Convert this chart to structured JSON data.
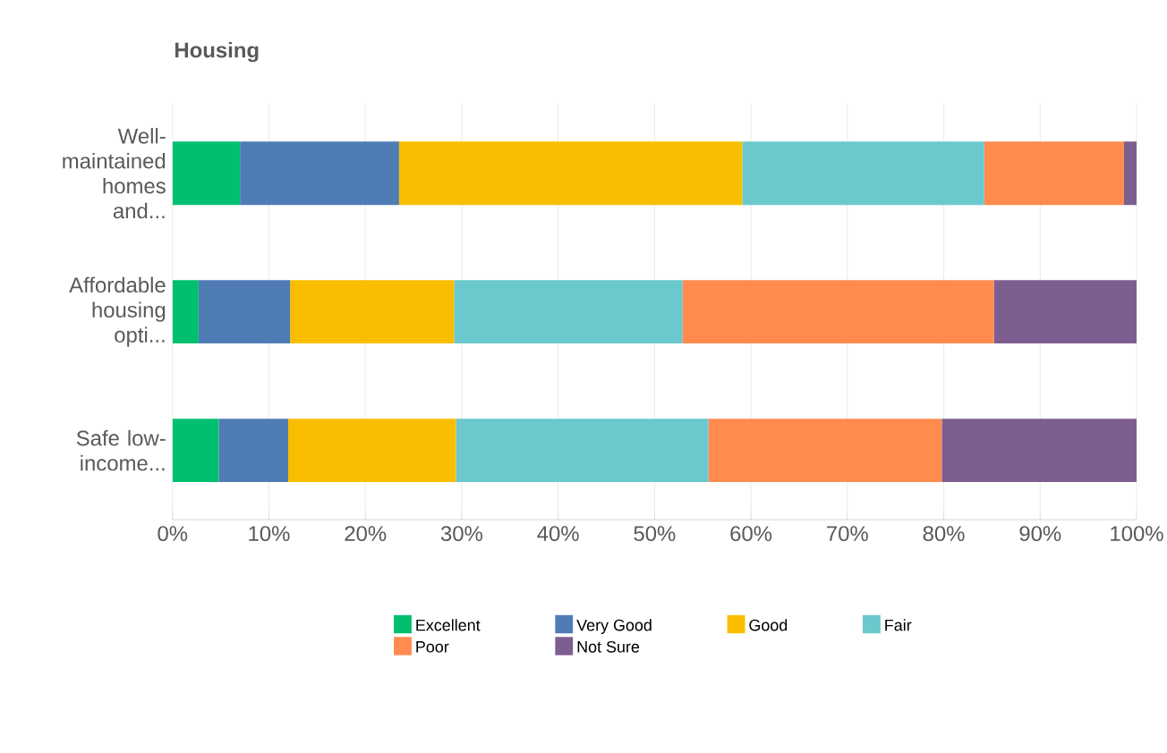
{
  "chart_data": {
    "type": "bar",
    "orientation": "horizontal",
    "stacked": true,
    "title": "Housing",
    "categories": [
      "Well-maintained homes and...",
      "Affordable housing opti...",
      "Safe low-income..."
    ],
    "series": [
      {
        "name": "Excellent",
        "color": "#00bf6f",
        "values": [
          7.0,
          2.7,
          4.8
        ]
      },
      {
        "name": "Very Good",
        "color": "#507cb6",
        "values": [
          16.5,
          9.5,
          7.2
        ]
      },
      {
        "name": "Good",
        "color": "#f9be00",
        "values": [
          35.6,
          17.0,
          17.4
        ]
      },
      {
        "name": "Fair",
        "color": "#6bc8cd",
        "values": [
          25.1,
          23.7,
          26.2
        ]
      },
      {
        "name": "Poor",
        "color": "#ff8b4f",
        "values": [
          14.5,
          32.3,
          24.2
        ]
      },
      {
        "name": "Not Sure",
        "color": "#7d5e90",
        "values": [
          1.3,
          14.8,
          20.2
        ]
      }
    ],
    "xlim": [
      0,
      100
    ],
    "xticks": [
      {
        "value": 0,
        "label": "0%"
      },
      {
        "value": 10,
        "label": "10%"
      },
      {
        "value": 20,
        "label": "20%"
      },
      {
        "value": 30,
        "label": "30%"
      },
      {
        "value": 40,
        "label": "40%"
      },
      {
        "value": 50,
        "label": "50%"
      },
      {
        "value": 60,
        "label": "60%"
      },
      {
        "value": 70,
        "label": "70%"
      },
      {
        "value": 80,
        "label": "80%"
      },
      {
        "value": 90,
        "label": "90%"
      },
      {
        "value": 100,
        "label": "100%"
      }
    ],
    "grid": "x",
    "legend": "bottom"
  }
}
